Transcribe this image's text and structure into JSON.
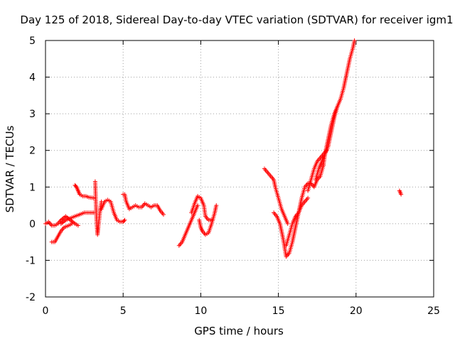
{
  "chart_data": {
    "type": "scatter",
    "title": "Day 125 of 2018, Sidereal Day-to-day VTEC variation (SDTVAR) for receiver igm1",
    "xlabel": "GPS time / hours",
    "ylabel": "SDTVAR / TECUs",
    "xlim": [
      0,
      25
    ],
    "ylim": [
      -2,
      5
    ],
    "xticks": [
      "0",
      "5",
      "10",
      "15",
      "20",
      "25"
    ],
    "yticks": [
      "-2",
      "-1",
      "0",
      "1",
      "2",
      "3",
      "4",
      "5"
    ],
    "grid": true,
    "marker": "+",
    "color": "#ff0000",
    "segments": [
      [
        [
          0.0,
          0.0
        ],
        [
          0.2,
          0.05
        ],
        [
          0.4,
          -0.05
        ],
        [
          0.6,
          -0.05
        ],
        [
          0.8,
          0.0
        ],
        [
          1.0,
          0.1
        ],
        [
          1.3,
          0.2
        ],
        [
          1.6,
          0.1
        ],
        [
          1.9,
          0.0
        ],
        [
          2.1,
          -0.05
        ]
      ],
      [
        [
          0.4,
          -0.5
        ],
        [
          0.6,
          -0.5
        ],
        [
          0.8,
          -0.35
        ],
        [
          1.0,
          -0.2
        ],
        [
          1.2,
          -0.1
        ],
        [
          1.5,
          -0.05
        ],
        [
          1.7,
          0.0
        ]
      ],
      [
        [
          1.0,
          0.0
        ],
        [
          1.3,
          0.1
        ],
        [
          1.6,
          0.15
        ],
        [
          1.9,
          0.2
        ],
        [
          2.2,
          0.25
        ],
        [
          2.5,
          0.3
        ],
        [
          2.8,
          0.3
        ],
        [
          3.1,
          0.3
        ]
      ],
      [
        [
          1.9,
          1.05
        ],
        [
          2.0,
          1.0
        ],
        [
          2.1,
          0.9
        ],
        [
          2.2,
          0.8
        ],
        [
          2.4,
          0.75
        ],
        [
          2.6,
          0.75
        ],
        [
          2.8,
          0.72
        ],
        [
          3.1,
          0.7
        ]
      ],
      [
        [
          3.2,
          1.15
        ],
        [
          3.25,
          0.5
        ],
        [
          3.3,
          0.0
        ],
        [
          3.35,
          -0.3
        ],
        [
          3.4,
          -0.1
        ],
        [
          3.5,
          0.3
        ],
        [
          3.6,
          0.6
        ]
      ],
      [
        [
          3.6,
          0.4
        ],
        [
          3.8,
          0.6
        ],
        [
          4.0,
          0.65
        ],
        [
          4.2,
          0.6
        ],
        [
          4.4,
          0.3
        ],
        [
          4.6,
          0.1
        ],
        [
          4.8,
          0.05
        ],
        [
          5.0,
          0.05
        ],
        [
          5.1,
          0.1
        ]
      ],
      [
        [
          5.0,
          0.8
        ],
        [
          5.1,
          0.8
        ],
        [
          5.2,
          0.6
        ],
        [
          5.4,
          0.4
        ],
        [
          5.6,
          0.45
        ],
        [
          5.8,
          0.5
        ],
        [
          6.0,
          0.45
        ],
        [
          6.2,
          0.45
        ],
        [
          6.4,
          0.55
        ],
        [
          6.6,
          0.5
        ],
        [
          6.8,
          0.45
        ],
        [
          7.0,
          0.5
        ],
        [
          7.2,
          0.5
        ],
        [
          7.4,
          0.35
        ],
        [
          7.6,
          0.25
        ]
      ],
      [
        [
          8.6,
          -0.6
        ],
        [
          8.8,
          -0.5
        ],
        [
          9.0,
          -0.3
        ],
        [
          9.2,
          -0.1
        ],
        [
          9.4,
          0.1
        ],
        [
          9.6,
          0.3
        ],
        [
          9.8,
          0.5
        ]
      ],
      [
        [
          9.4,
          0.3
        ],
        [
          9.6,
          0.55
        ],
        [
          9.8,
          0.75
        ],
        [
          10.0,
          0.7
        ],
        [
          10.2,
          0.5
        ],
        [
          10.3,
          0.2
        ],
        [
          10.5,
          0.1
        ],
        [
          10.7,
          0.1
        ]
      ],
      [
        [
          9.9,
          0.1
        ],
        [
          10.0,
          -0.1
        ],
        [
          10.1,
          -0.2
        ],
        [
          10.3,
          -0.3
        ],
        [
          10.5,
          -0.25
        ],
        [
          10.7,
          0.0
        ],
        [
          10.9,
          0.3
        ],
        [
          11.0,
          0.5
        ]
      ],
      [
        [
          14.1,
          1.5
        ],
        [
          14.3,
          1.4
        ],
        [
          14.5,
          1.3
        ],
        [
          14.7,
          1.2
        ],
        [
          14.8,
          1.0
        ],
        [
          15.0,
          0.7
        ],
        [
          15.2,
          0.4
        ],
        [
          15.4,
          0.2
        ],
        [
          15.6,
          0.0
        ]
      ],
      [
        [
          14.7,
          0.3
        ],
        [
          14.9,
          0.2
        ],
        [
          15.1,
          0.0
        ],
        [
          15.3,
          -0.4
        ],
        [
          15.5,
          -0.9
        ],
        [
          15.7,
          -0.8
        ],
        [
          15.9,
          -0.5
        ],
        [
          16.1,
          -0.1
        ],
        [
          16.3,
          0.3
        ],
        [
          16.5,
          0.7
        ],
        [
          16.7,
          1.0
        ],
        [
          16.9,
          1.1
        ],
        [
          17.1,
          1.1
        ],
        [
          17.3,
          1.0
        ],
        [
          17.5,
          1.2
        ],
        [
          17.7,
          1.3
        ],
        [
          17.9,
          1.6
        ]
      ],
      [
        [
          15.5,
          -0.6
        ],
        [
          15.7,
          -0.3
        ],
        [
          15.9,
          0.0
        ],
        [
          16.1,
          0.2
        ],
        [
          16.3,
          0.3
        ],
        [
          16.5,
          0.5
        ],
        [
          16.7,
          0.6
        ],
        [
          16.9,
          0.7
        ]
      ],
      [
        [
          16.9,
          0.9
        ],
        [
          17.1,
          1.2
        ],
        [
          17.3,
          1.5
        ],
        [
          17.5,
          1.7
        ],
        [
          17.7,
          1.8
        ],
        [
          17.9,
          1.9
        ],
        [
          18.1,
          2.0
        ]
      ],
      [
        [
          17.4,
          1.2
        ],
        [
          17.6,
          1.5
        ],
        [
          17.8,
          1.7
        ],
        [
          18.0,
          1.9
        ],
        [
          18.2,
          2.1
        ],
        [
          18.4,
          2.5
        ],
        [
          18.6,
          2.9
        ],
        [
          18.8,
          3.2
        ],
        [
          19.0,
          3.4
        ],
        [
          19.2,
          3.7
        ],
        [
          19.4,
          4.1
        ],
        [
          19.6,
          4.5
        ],
        [
          19.8,
          4.8
        ],
        [
          19.9,
          5.0
        ]
      ],
      [
        [
          17.9,
          1.6
        ],
        [
          18.0,
          1.9
        ],
        [
          18.2,
          2.3
        ],
        [
          18.4,
          2.7
        ],
        [
          18.6,
          3.0
        ],
        [
          18.8,
          3.2
        ]
      ],
      [
        [
          22.8,
          0.9
        ],
        [
          22.9,
          0.8
        ]
      ]
    ]
  }
}
